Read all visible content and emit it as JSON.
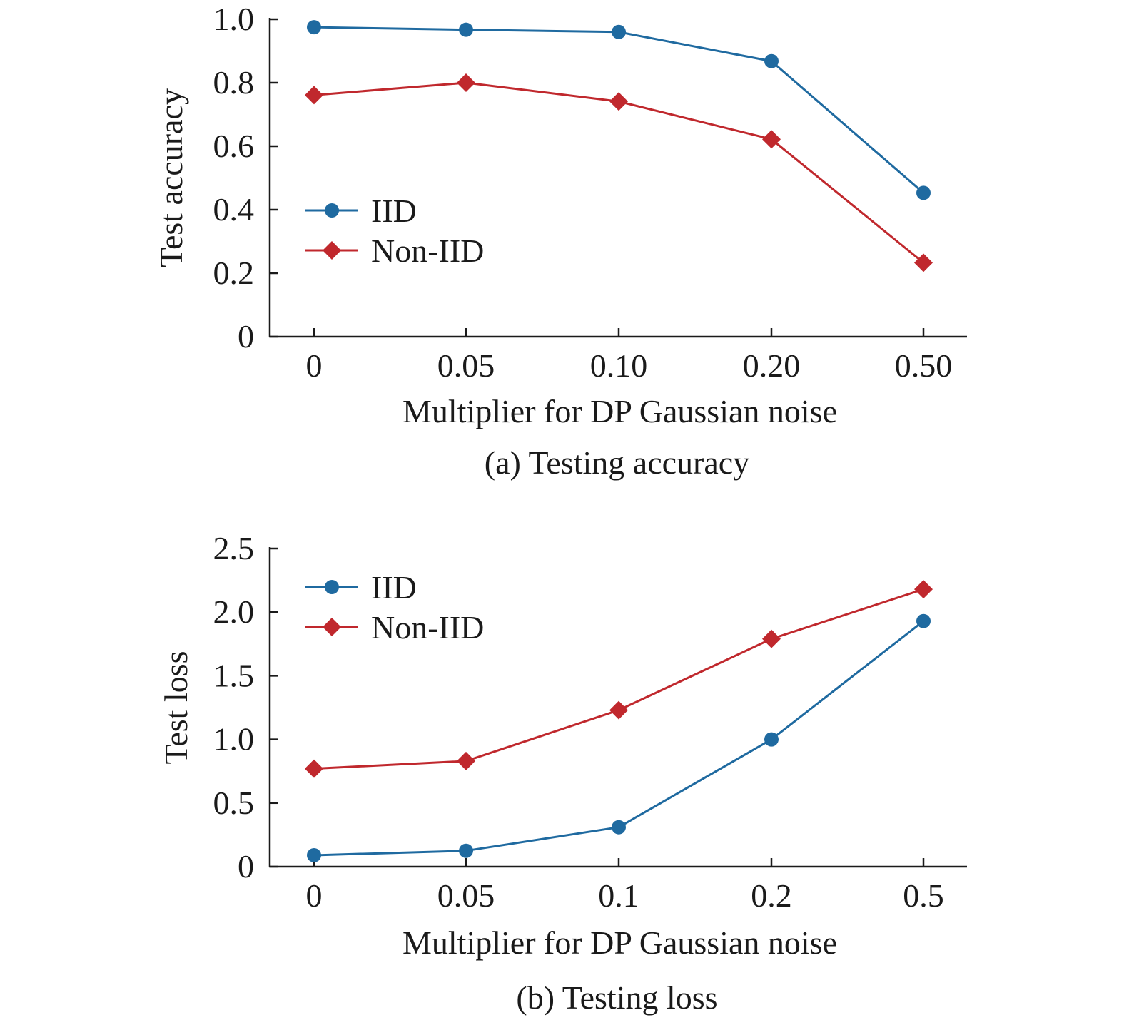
{
  "chart_data": [
    {
      "type": "line",
      "caption": "(a) Testing accuracy",
      "title": "",
      "xlabel": "Multiplier for DP Gaussian noise",
      "ylabel": "Test accuracy",
      "categories": [
        "0",
        "0.05",
        "0.10",
        "0.20",
        "0.50"
      ],
      "y_ticks": [
        "0",
        "0.2",
        "0.4",
        "0.6",
        "0.8",
        "1.0"
      ],
      "ylim": [
        0,
        1.0
      ],
      "grid": false,
      "legend_position": "middle-left",
      "series": [
        {
          "name": "IID",
          "marker": "circle",
          "color": "#1f6aa0",
          "values": [
            0.975,
            0.967,
            0.96,
            0.868,
            0.453
          ]
        },
        {
          "name": "Non-IID",
          "marker": "diamond",
          "color": "#c0282d",
          "values": [
            0.761,
            0.8,
            0.741,
            0.622,
            0.233
          ]
        }
      ]
    },
    {
      "type": "line",
      "caption": "(b) Testing loss",
      "title": "",
      "xlabel": "Multiplier for DP Gaussian noise",
      "ylabel": "Test loss",
      "categories": [
        "0",
        "0.05",
        "0.1",
        "0.2",
        "0.5"
      ],
      "y_ticks": [
        "0",
        "0.5",
        "1.0",
        "1.5",
        "2.0",
        "2.5"
      ],
      "ylim": [
        0,
        2.5
      ],
      "grid": false,
      "legend_position": "top-left",
      "series": [
        {
          "name": "IID",
          "marker": "circle",
          "color": "#1f6aa0",
          "values": [
            0.09,
            0.125,
            0.31,
            1.0,
            1.93
          ]
        },
        {
          "name": "Non-IID",
          "marker": "diamond",
          "color": "#c0282d",
          "values": [
            0.77,
            0.83,
            1.23,
            1.79,
            2.18
          ]
        }
      ]
    }
  ]
}
